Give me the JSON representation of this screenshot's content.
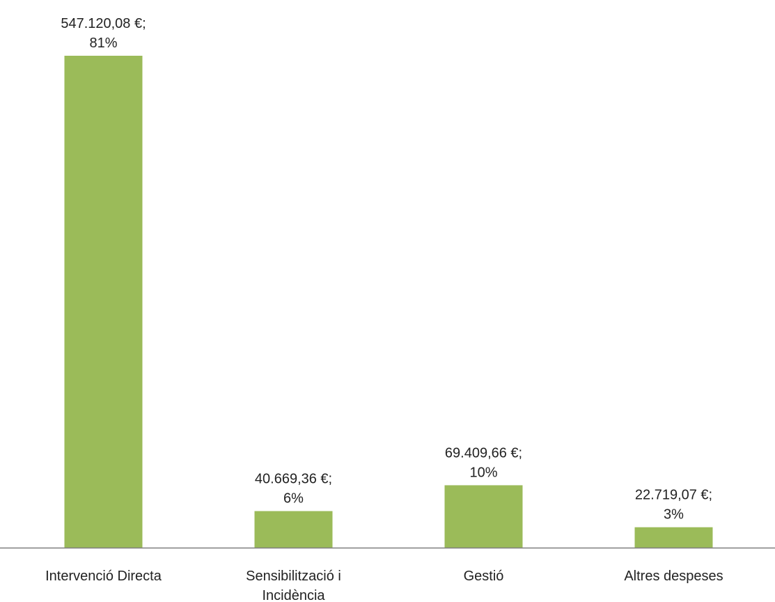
{
  "chart_data": {
    "type": "bar",
    "categories": [
      [
        "Intervenció Directa"
      ],
      [
        "Sensibilització i",
        "Incidència"
      ],
      [
        "Gestió"
      ],
      [
        "Altres despeses"
      ]
    ],
    "values": [
      547120.08,
      40669.36,
      69409.66,
      22719.07
    ],
    "data_labels": [
      [
        "547.120,08 €;",
        "81%"
      ],
      [
        "40.669,36 €;",
        "6%"
      ],
      [
        "69.409,66 €;",
        "10%"
      ],
      [
        "22.719,07 €;",
        "3%"
      ]
    ],
    "title": "",
    "xlabel": "",
    "ylabel": "",
    "ylim": [
      0,
      570000
    ],
    "grid": false,
    "legend": "none",
    "bar_color": "#9BBB59",
    "axis_color": "#7f7f7f"
  }
}
